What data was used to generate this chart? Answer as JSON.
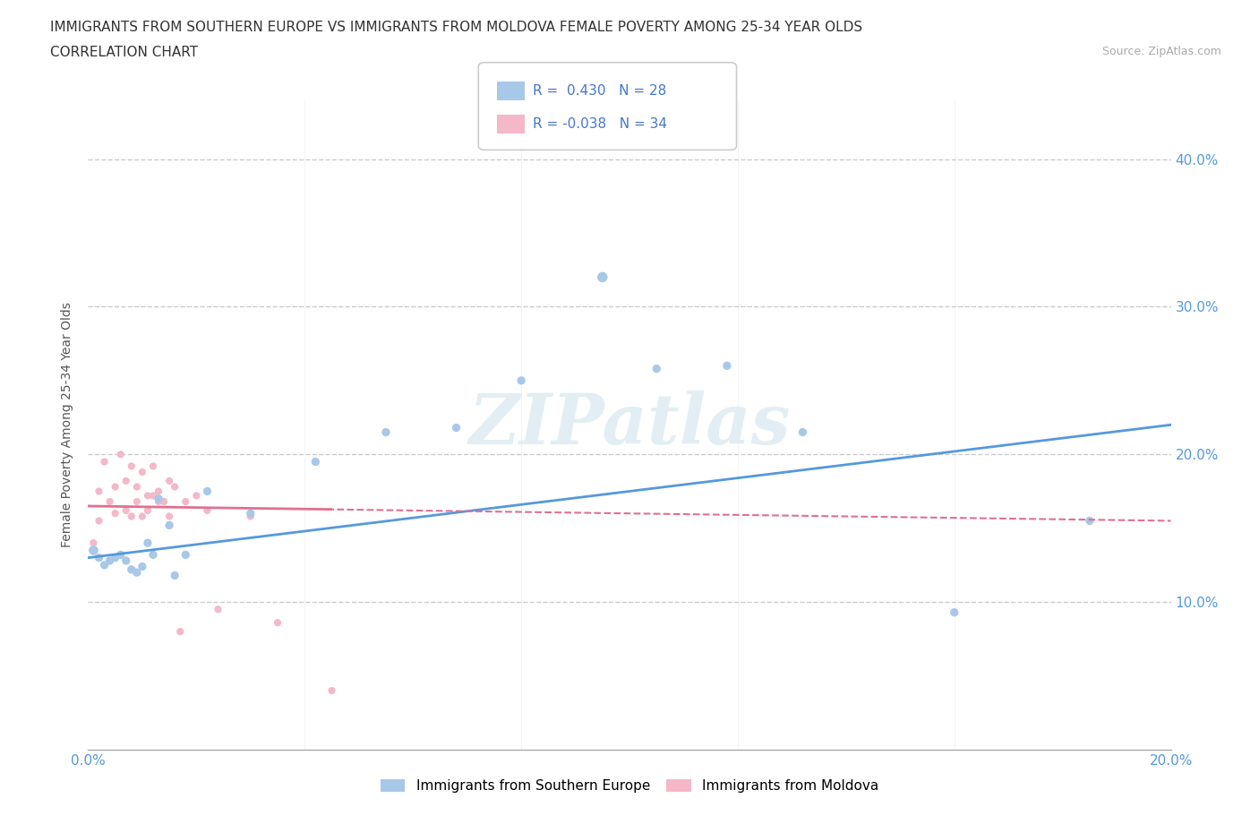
{
  "title_line1": "IMMIGRANTS FROM SOUTHERN EUROPE VS IMMIGRANTS FROM MOLDOVA FEMALE POVERTY AMONG 25-34 YEAR OLDS",
  "title_line2": "CORRELATION CHART",
  "source": "Source: ZipAtlas.com",
  "ylabel": "Female Poverty Among 25-34 Year Olds",
  "xlim": [
    0.0,
    0.2
  ],
  "ylim": [
    0.0,
    0.44
  ],
  "xticks": [
    0.0,
    0.04,
    0.08,
    0.12,
    0.16,
    0.2
  ],
  "yticks": [
    0.1,
    0.2,
    0.3,
    0.4
  ],
  "grid_color": "#cccccc",
  "background_color": "#ffffff",
  "watermark": "ZIPatlas",
  "series1_name": "Immigrants from Southern Europe",
  "series1_color": "#a8c8e8",
  "series1_R": "0.430",
  "series1_N": "28",
  "series1_x": [
    0.001,
    0.002,
    0.003,
    0.004,
    0.005,
    0.006,
    0.007,
    0.008,
    0.009,
    0.01,
    0.011,
    0.012,
    0.013,
    0.015,
    0.016,
    0.018,
    0.022,
    0.03,
    0.042,
    0.055,
    0.068,
    0.08,
    0.095,
    0.105,
    0.118,
    0.132,
    0.16,
    0.185
  ],
  "series1_y": [
    0.135,
    0.13,
    0.125,
    0.128,
    0.13,
    0.132,
    0.128,
    0.122,
    0.12,
    0.124,
    0.14,
    0.132,
    0.17,
    0.152,
    0.118,
    0.132,
    0.175,
    0.16,
    0.195,
    0.215,
    0.218,
    0.25,
    0.32,
    0.258,
    0.26,
    0.215,
    0.093,
    0.155
  ],
  "series1_sizes": [
    60,
    45,
    45,
    45,
    45,
    45,
    45,
    45,
    45,
    45,
    45,
    45,
    45,
    45,
    45,
    45,
    45,
    45,
    45,
    45,
    45,
    45,
    70,
    45,
    45,
    45,
    45,
    45
  ],
  "series2_name": "Immigrants from Moldova",
  "series2_color": "#f4b8c8",
  "series2_R": "-0.038",
  "series2_N": "34",
  "series2_x": [
    0.001,
    0.002,
    0.002,
    0.003,
    0.004,
    0.005,
    0.005,
    0.006,
    0.007,
    0.007,
    0.008,
    0.008,
    0.009,
    0.009,
    0.01,
    0.01,
    0.011,
    0.011,
    0.012,
    0.012,
    0.013,
    0.013,
    0.014,
    0.015,
    0.015,
    0.016,
    0.017,
    0.018,
    0.02,
    0.022,
    0.024,
    0.03,
    0.035,
    0.045
  ],
  "series2_y": [
    0.14,
    0.175,
    0.155,
    0.195,
    0.168,
    0.178,
    0.16,
    0.2,
    0.182,
    0.162,
    0.192,
    0.158,
    0.168,
    0.178,
    0.158,
    0.188,
    0.162,
    0.172,
    0.192,
    0.172,
    0.168,
    0.175,
    0.168,
    0.182,
    0.158,
    0.178,
    0.08,
    0.168,
    0.172,
    0.162,
    0.095,
    0.158,
    0.086,
    0.04
  ],
  "series2_sizes": [
    35,
    35,
    35,
    35,
    35,
    35,
    35,
    35,
    35,
    35,
    35,
    35,
    35,
    35,
    35,
    35,
    35,
    35,
    35,
    35,
    35,
    35,
    35,
    35,
    35,
    35,
    35,
    35,
    35,
    35,
    35,
    35,
    35,
    35
  ],
  "trendline1_color": "#5599dd",
  "trendline2_solid_color": "#e07090",
  "trendline2_dash_color": "#e07090",
  "legend_R_color": "#4477cc",
  "legend_N_color": "#333333"
}
